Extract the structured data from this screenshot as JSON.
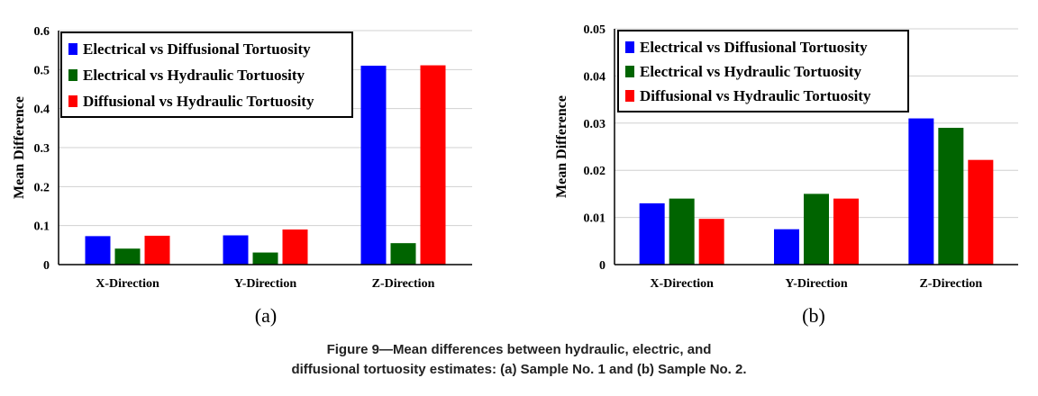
{
  "chart_data": [
    {
      "type": "bar",
      "panel_label": "(a)",
      "ylabel": "Mean Difference",
      "ylim": [
        0,
        0.6
      ],
      "yticks": [
        "0",
        "0.1",
        "0.2",
        "0.3",
        "0.4",
        "0.5",
        "0.6"
      ],
      "categories": [
        "X-Direction",
        "Y-Direction",
        "Z-Direction"
      ],
      "grid": true,
      "legend_position": "top-left",
      "series": [
        {
          "name": "Electrical vs Diffusional Tortuosity",
          "color": "#0000ff",
          "values": [
            0.073,
            0.075,
            0.51
          ]
        },
        {
          "name": "Electrical vs Hydraulic Tortuosity",
          "color": "#006400",
          "values": [
            0.041,
            0.031,
            0.055
          ]
        },
        {
          "name": "Diffusional vs Hydraulic Tortuosity",
          "color": "#ff0000",
          "values": [
            0.074,
            0.09,
            0.511
          ]
        }
      ]
    },
    {
      "type": "bar",
      "panel_label": "(b)",
      "ylabel": "Mean Difference",
      "ylim": [
        0,
        0.05
      ],
      "yticks": [
        "0",
        "0.01",
        "0.02",
        "0.03",
        "0.04",
        "0.05"
      ],
      "categories": [
        "X-Direction",
        "Y-Direction",
        "Z-Direction"
      ],
      "grid": true,
      "legend_position": "top-left",
      "series": [
        {
          "name": "Electrical vs Diffusional Tortuosity",
          "color": "#0000ff",
          "values": [
            0.013,
            0.0075,
            0.031
          ]
        },
        {
          "name": "Electrical vs Hydraulic Tortuosity",
          "color": "#006400",
          "values": [
            0.014,
            0.015,
            0.029
          ]
        },
        {
          "name": "Diffusional vs Hydraulic Tortuosity",
          "color": "#ff0000",
          "values": [
            0.0097,
            0.014,
            0.0222
          ]
        }
      ]
    }
  ],
  "caption": {
    "line1": "Figure 9—Mean differences between hydraulic, electric, and",
    "line2": "diffusional tortuosity estimates: (a) Sample No. 1 and (b) Sample No. 2."
  }
}
